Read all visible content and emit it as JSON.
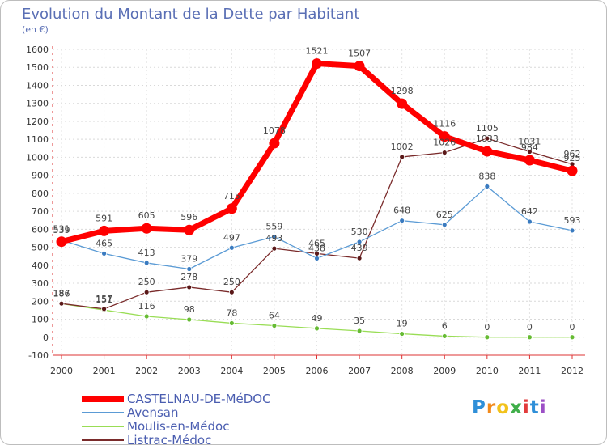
{
  "header": {
    "title": "Evolution du Montant de la Dette par Habitant",
    "unit": "(en €)"
  },
  "logo": {
    "text": "Proxiti",
    "letter_colors": [
      "#2f8fd8",
      "#f28a1b",
      "#f2c21b",
      "#3fae49",
      "#e23b3b",
      "#2f8fd8",
      "#9c4fc6"
    ]
  },
  "chart_data": {
    "type": "line",
    "title": "Evolution du Montant de la Dette par Habitant",
    "subtitle": "(en €)",
    "xlabel": "",
    "ylabel": "",
    "x": [
      "2000",
      "2001",
      "2002",
      "2003",
      "2004",
      "2005",
      "2006",
      "2007",
      "2008",
      "2009",
      "2010",
      "2011",
      "2012"
    ],
    "ylim": [
      -100,
      1600
    ],
    "yticks": [
      -100,
      0,
      100,
      200,
      300,
      400,
      500,
      600,
      700,
      800,
      900,
      1000,
      1100,
      1200,
      1300,
      1400,
      1500,
      1600
    ],
    "grid": "horizontal dashed",
    "legend_position": "bottom-left",
    "series": [
      {
        "name": "CASTELNAU-DE-MéDOC",
        "color": "#ff0000",
        "marker_color": "#ff0000",
        "thick": true,
        "values": [
          531,
          591,
          605,
          596,
          715,
          1078,
          1521,
          1507,
          1298,
          1116,
          1033,
          984,
          925
        ],
        "labels": [
          "531",
          "591",
          "605",
          "596",
          "715",
          "1078",
          "1521",
          "1507",
          "1298",
          "1116",
          "1033",
          "984",
          "925"
        ]
      },
      {
        "name": "Avensan",
        "color": "#5b9bd5",
        "marker_color": "#3a7bc0",
        "thick": false,
        "values": [
          539,
          465,
          413,
          379,
          497,
          559,
          438,
          530,
          648,
          625,
          838,
          642,
          593
        ],
        "labels": [
          "539",
          "465",
          "413",
          "379",
          "497",
          "559",
          "438",
          "530",
          "648",
          "625",
          "838",
          "642",
          "593"
        ]
      },
      {
        "name": "Moulis-en-Médoc",
        "color": "#99dd55",
        "marker_color": "#66bb33",
        "thick": false,
        "values": [
          186,
          151,
          116,
          98,
          78,
          64,
          49,
          35,
          19,
          6,
          0,
          0,
          0
        ],
        "labels": [
          "186",
          "151",
          "116",
          "98",
          "78",
          "64",
          "49",
          "35",
          "19",
          "6",
          "0",
          "0",
          "0"
        ]
      },
      {
        "name": "Listrac-Médoc",
        "color": "#7a2b2b",
        "marker_color": "#5a1818",
        "thick": false,
        "values": [
          187,
          157,
          250,
          278,
          250,
          493,
          465,
          439,
          1002,
          1026,
          1105,
          1031,
          962
        ],
        "labels": [
          "187",
          "157",
          "250",
          "278",
          "250",
          "493",
          "465",
          "439",
          "1002",
          "1026",
          "1105",
          "1031",
          "962"
        ]
      }
    ]
  }
}
